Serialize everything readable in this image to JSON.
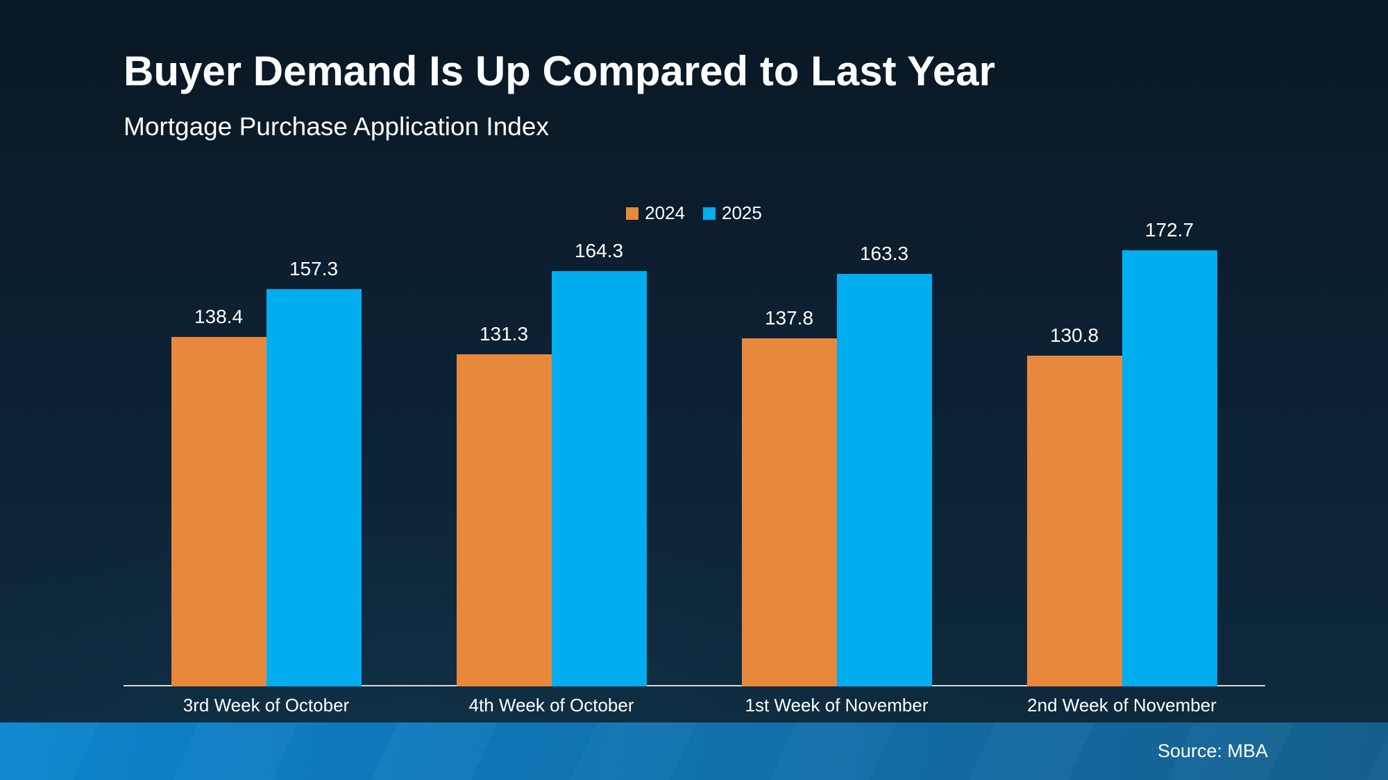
{
  "header": {
    "title": "Buyer Demand Is Up Compared to Last Year",
    "subtitle": "Mortgage Purchase Application Index"
  },
  "footer": {
    "source_label": "Source: MBA"
  },
  "colors": {
    "background_top": "#0A1724",
    "background_mid": "#0C2133",
    "background_bottom": "#0E2B3E",
    "bar_2024": "#E8883C",
    "bar_2025": "#00ADEE",
    "axis_line": "#D2D7DC",
    "text": "#FFFFFF",
    "footer_gradient_left": "#0C85CF",
    "footer_gradient_right": "#15608F"
  },
  "chart_data": {
    "type": "bar",
    "title": "Buyer Demand Is Up Compared to Last Year",
    "subtitle": "Mortgage Purchase Application Index",
    "categories": [
      "3rd Week of October",
      "4th Week of October",
      "1st Week of November",
      "2nd Week of November"
    ],
    "series": [
      {
        "name": "2024",
        "color": "#E8883C",
        "values": [
          138.4,
          131.3,
          137.8,
          130.8
        ]
      },
      {
        "name": "2025",
        "color": "#00ADEE",
        "values": [
          157.3,
          164.3,
          163.3,
          172.7
        ]
      }
    ],
    "ylim": [
      0,
      180
    ],
    "grid": false,
    "y_axis_visible": false,
    "legend_position": "top-center",
    "data_labels": true,
    "source": "Source: MBA"
  }
}
